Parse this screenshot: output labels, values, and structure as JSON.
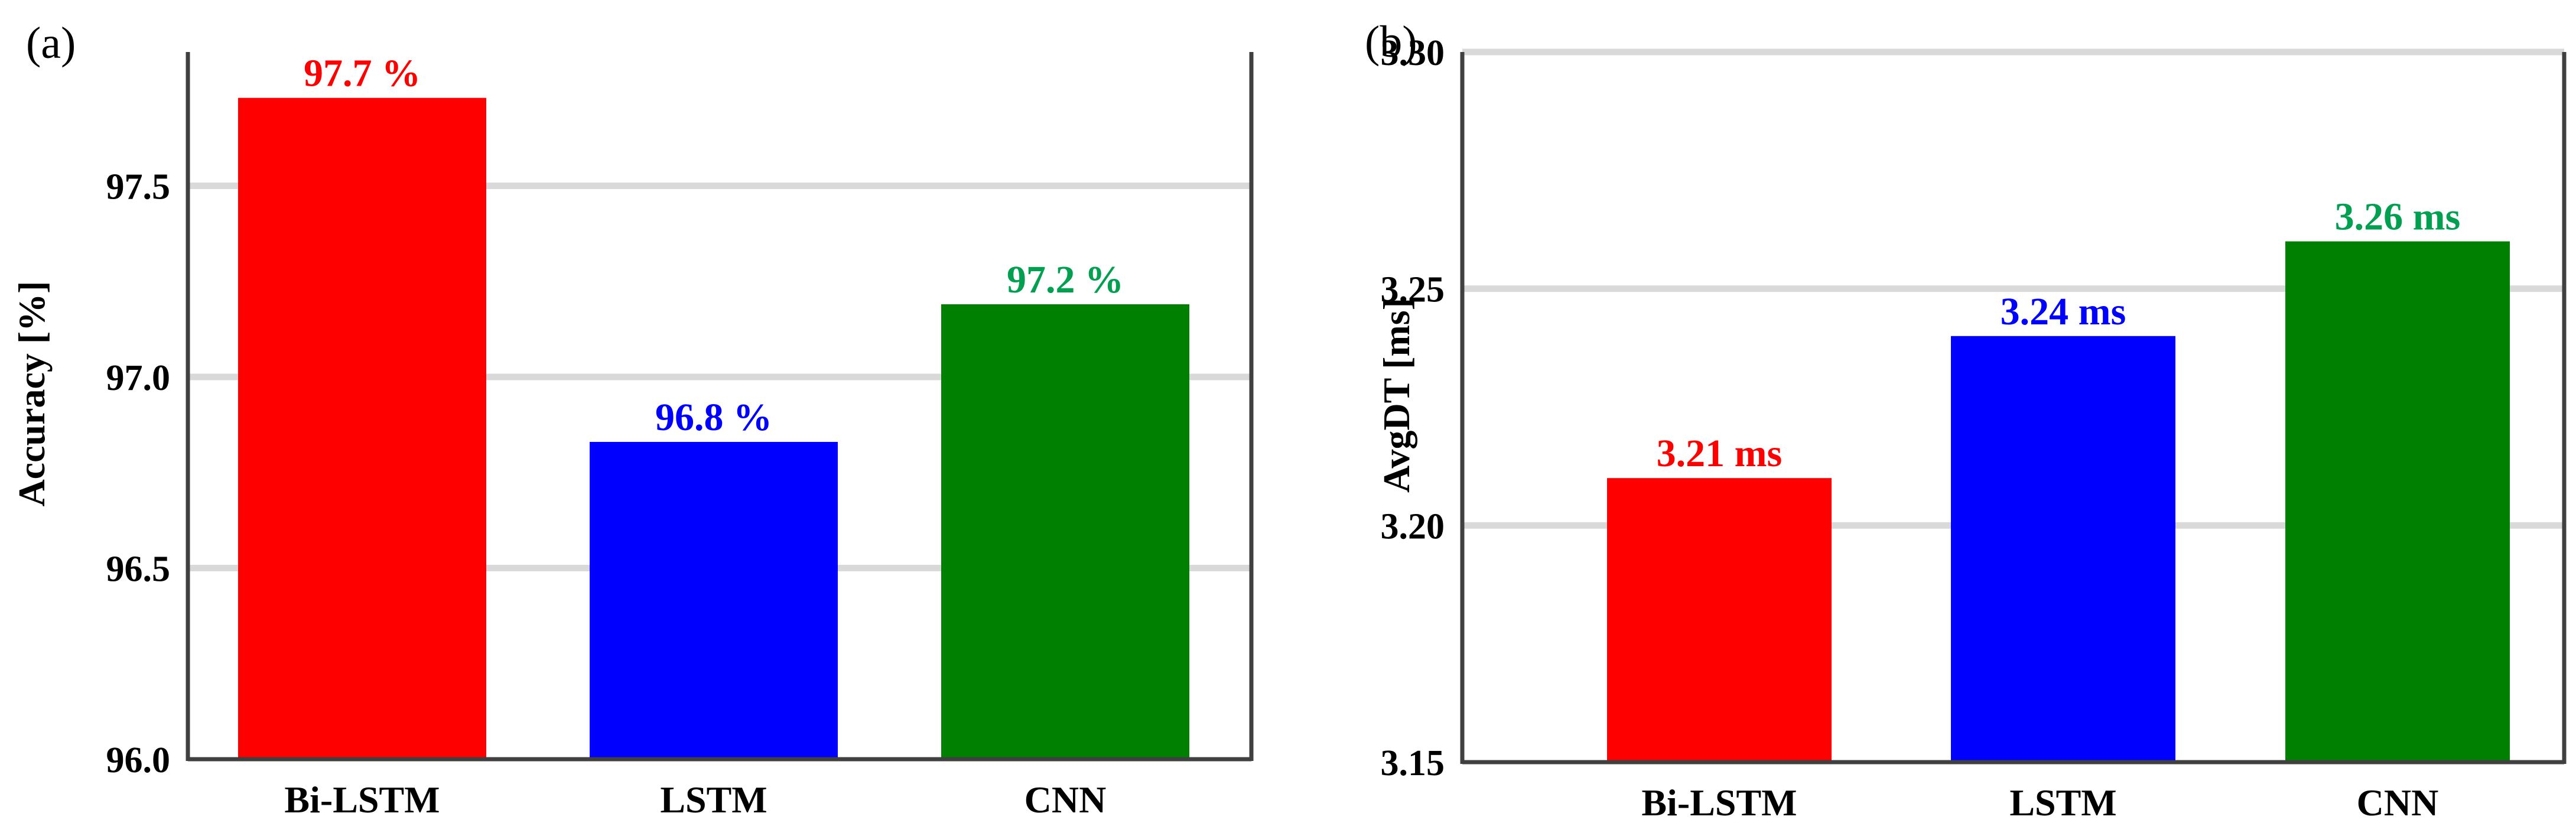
{
  "chart_data": [
    {
      "panel": "(a)",
      "type": "bar",
      "categories": [
        "Bi-LSTM",
        "LSTM",
        "CNN"
      ],
      "values": [
        97.73,
        96.83,
        97.19
      ],
      "data_labels": [
        "97.7 %",
        "96.8 %",
        "97.2 %"
      ],
      "colors": [
        "#ff0000",
        "#0000ff",
        "#008000"
      ],
      "label_colors": [
        "#ff0000",
        "#0000ff",
        "#00a050"
      ],
      "ylabel": "Accuracy [%]",
      "ylim": [
        96.0,
        97.85
      ],
      "yticks": [
        96.0,
        96.5,
        97.0,
        97.5
      ],
      "ytick_labels": [
        "96.0",
        "96.5",
        "97.0",
        "97.5"
      ],
      "grid": true
    },
    {
      "panel": "(b)",
      "type": "bar",
      "categories": [
        "Bi-LSTM",
        "LSTM",
        "CNN"
      ],
      "values": [
        3.21,
        3.24,
        3.26
      ],
      "data_labels": [
        "3.21 ms",
        "3.24 ms",
        "3.26 ms"
      ],
      "colors": [
        "#ff0000",
        "#0000ff",
        "#008000"
      ],
      "label_colors": [
        "#ff0000",
        "#0000ff",
        "#00a050"
      ],
      "ylabel": "AvgDT [ms]",
      "ylim": [
        3.15,
        3.3
      ],
      "yticks": [
        3.15,
        3.2,
        3.25,
        3.3
      ],
      "ytick_labels": [
        "3.15",
        "3.20",
        "3.25",
        "3.30"
      ],
      "grid": true
    }
  ]
}
